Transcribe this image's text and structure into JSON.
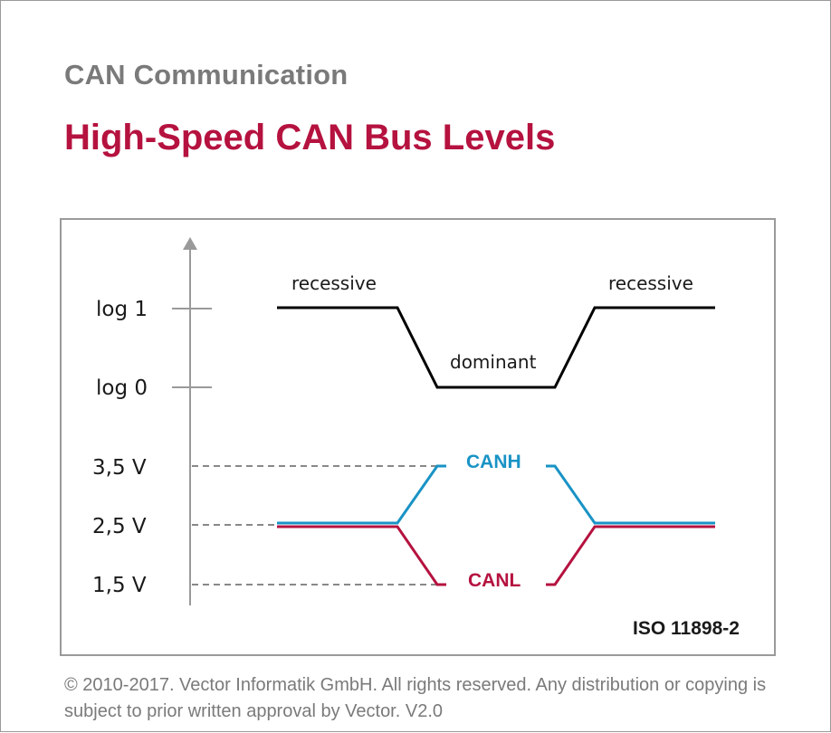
{
  "header": {
    "section": "CAN Communication",
    "title": "High-Speed CAN Bus Levels"
  },
  "diagram": {
    "logic_axis_labels": [
      "log 1",
      "log 0"
    ],
    "voltage_axis_labels": [
      "3,5 V",
      "2,5 V",
      "1,5 V"
    ],
    "state_labels": {
      "recessive_left": "recessive",
      "dominant": "dominant",
      "recessive_right": "recessive"
    },
    "signal_labels": {
      "canh": "CANH",
      "canl": "CANL"
    },
    "standard": "ISO 11898-2",
    "colors": {
      "logic": "#000000",
      "canh": "#1993c5",
      "canl": "#b5123f",
      "axis": "#9a9a9a",
      "dashed": "#888888"
    }
  },
  "footer": {
    "copyright": "© 2010-2017. Vector Informatik GmbH. All rights reserved. Any distribution or copying is subject to prior written approval by Vector. V2.0"
  }
}
